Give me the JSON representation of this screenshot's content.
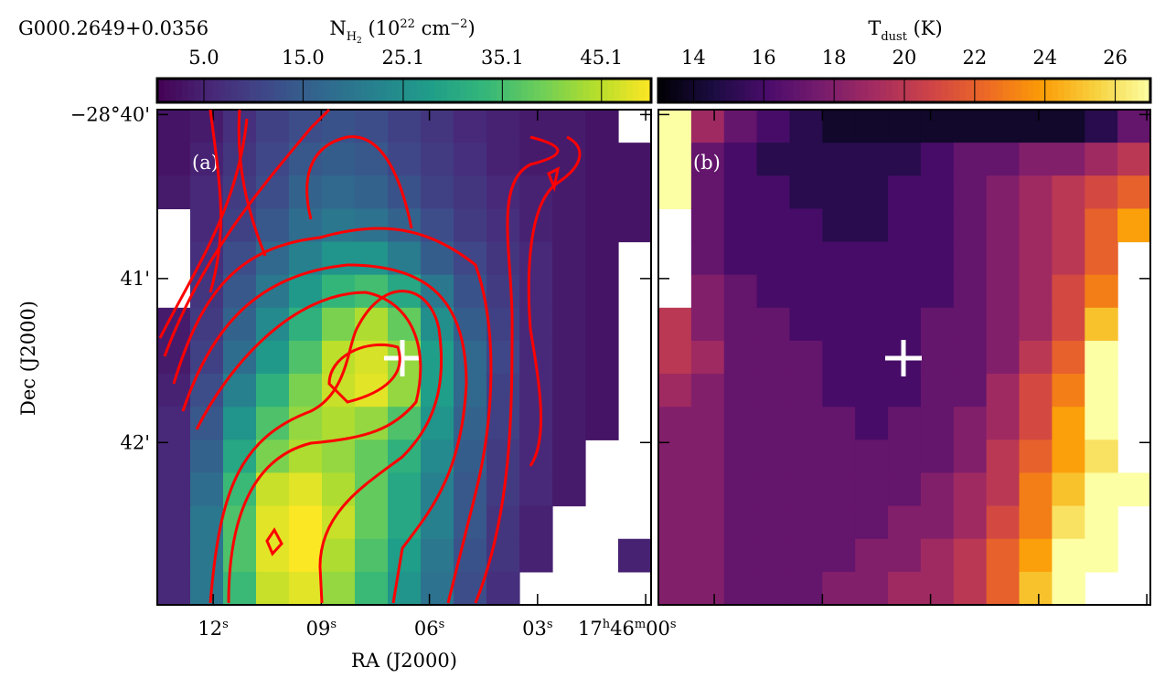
{
  "title": "G000.2649+0.0356",
  "chart_data": [
    {
      "type": "heatmap",
      "panel_label": "(a)",
      "colormap": "viridis",
      "colorbar_label": [
        "N",
        "H",
        "2",
        " (10",
        "22",
        " cm",
        "−2",
        ")"
      ],
      "clim": [
        0.3,
        50.1
      ],
      "cticks": [
        {
          "value": 5.0,
          "label": "5.0"
        },
        {
          "value": 15.0,
          "label": "15.0"
        },
        {
          "value": 25.1,
          "label": "25.1"
        },
        {
          "value": 35.1,
          "label": "35.1"
        },
        {
          "value": 45.1,
          "label": "45.1"
        }
      ],
      "xlabel": "RA (J2000)",
      "ylabel": "Dec (J2000)",
      "xlim": [
        13.55,
        -0.15
      ],
      "xticks": [
        {
          "value": 12,
          "label": [
            "12",
            "s"
          ]
        },
        {
          "value": 9,
          "label": [
            "09",
            "s"
          ]
        },
        {
          "value": 6,
          "label": [
            "06",
            "s"
          ]
        },
        {
          "value": 3,
          "label": [
            "03",
            "s"
          ]
        },
        {
          "value": 0,
          "label": [
            "17",
            "h",
            "46",
            "m",
            "00",
            "s"
          ]
        }
      ],
      "ylim": [
        39.97,
        42.99
      ],
      "yticks": [
        {
          "value": 40,
          "label": "−28°40'"
        },
        {
          "value": 41,
          "label": "41'"
        },
        {
          "value": 42,
          "label": "42'"
        }
      ],
      "contour_color": "#ff0000",
      "values": [
        [
          3,
          4,
          7,
          10,
          12,
          13,
          12,
          10,
          8,
          6,
          5,
          4,
          4,
          3,
          null
        ],
        [
          3,
          5,
          8,
          11,
          14,
          15,
          14,
          11,
          9,
          7,
          5,
          4,
          4,
          3,
          3
        ],
        [
          4,
          6,
          9,
          12,
          16,
          17,
          16,
          13,
          10,
          8,
          6,
          5,
          4,
          3,
          3
        ],
        [
          null,
          6,
          10,
          14,
          18,
          20,
          19,
          16,
          12,
          9,
          7,
          5,
          4,
          3,
          3
        ],
        [
          null,
          7,
          12,
          17,
          22,
          26,
          26,
          21,
          15,
          11,
          8,
          6,
          4,
          3,
          null
        ],
        [
          null,
          8,
          14,
          20,
          27,
          33,
          35,
          30,
          20,
          13,
          9,
          6,
          4,
          3,
          null
        ],
        [
          4,
          9,
          16,
          24,
          32,
          40,
          44,
          38,
          25,
          15,
          10,
          6,
          4,
          3,
          null
        ],
        [
          4,
          10,
          18,
          27,
          36,
          45,
          47,
          42,
          28,
          17,
          11,
          6,
          4,
          3,
          null
        ],
        [
          5,
          12,
          22,
          32,
          40,
          46,
          48,
          42,
          28,
          17,
          10,
          6,
          4,
          3,
          null
        ],
        [
          6,
          14,
          26,
          36,
          42,
          44,
          42,
          36,
          26,
          16,
          10,
          6,
          4,
          3,
          null
        ],
        [
          6,
          16,
          30,
          40,
          44,
          42,
          38,
          32,
          24,
          15,
          9,
          6,
          4,
          null,
          null
        ],
        [
          6,
          18,
          34,
          46,
          48,
          44,
          38,
          30,
          22,
          14,
          9,
          6,
          4,
          null,
          null
        ],
        [
          6,
          20,
          36,
          48,
          50,
          46,
          38,
          30,
          22,
          14,
          8,
          5,
          null,
          null,
          null
        ],
        [
          6,
          20,
          36,
          48,
          50,
          44,
          36,
          28,
          20,
          13,
          8,
          5,
          null,
          null,
          5
        ],
        [
          6,
          20,
          34,
          46,
          48,
          42,
          34,
          26,
          19,
          12,
          7,
          null,
          null,
          null,
          null
        ]
      ]
    },
    {
      "type": "heatmap",
      "panel_label": "(b)",
      "colormap": "inferno",
      "colorbar_label": [
        "T",
        "dust",
        " (K)"
      ],
      "clim": [
        13,
        27
      ],
      "cticks": [
        14,
        16,
        18,
        20,
        22,
        24,
        26
      ],
      "values": [
        [
          27,
          19,
          17,
          16,
          15,
          14,
          14,
          14,
          14,
          14,
          14,
          14,
          14,
          15,
          17
        ],
        [
          27,
          17,
          16,
          15,
          15,
          15,
          15,
          15,
          16,
          17,
          17,
          18,
          18,
          19,
          20
        ],
        [
          27,
          17,
          16,
          16,
          15,
          15,
          15,
          16,
          16,
          17,
          18,
          19,
          20,
          21,
          22
        ],
        [
          null,
          17,
          16,
          16,
          16,
          15,
          15,
          16,
          16,
          17,
          18,
          19,
          20,
          22,
          24
        ],
        [
          null,
          17,
          16,
          16,
          16,
          16,
          16,
          16,
          16,
          17,
          18,
          19,
          20,
          22,
          null
        ],
        [
          null,
          18,
          17,
          16,
          16,
          16,
          16,
          16,
          16,
          17,
          18,
          19,
          21,
          23,
          null
        ],
        [
          20,
          18,
          17,
          17,
          16,
          16,
          16,
          16,
          17,
          17,
          18,
          19,
          21,
          25,
          null
        ],
        [
          20,
          19,
          17,
          17,
          17,
          16,
          16,
          16,
          17,
          17,
          18,
          20,
          22,
          27,
          null
        ],
        [
          19,
          18,
          17,
          17,
          17,
          16,
          16,
          16,
          17,
          17,
          19,
          21,
          23,
          27,
          null
        ],
        [
          18,
          18,
          17,
          17,
          17,
          17,
          16,
          17,
          17,
          18,
          19,
          21,
          24,
          27,
          null
        ],
        [
          18,
          18,
          17,
          17,
          17,
          17,
          17,
          17,
          17,
          18,
          20,
          22,
          24,
          26,
          null
        ],
        [
          18,
          18,
          17,
          17,
          17,
          17,
          17,
          17,
          18,
          19,
          20,
          23,
          25,
          27,
          27
        ],
        [
          18,
          18,
          17,
          17,
          17,
          17,
          17,
          18,
          18,
          19,
          21,
          23,
          26,
          27,
          null
        ],
        [
          18,
          18,
          17,
          17,
          17,
          17,
          18,
          18,
          19,
          20,
          22,
          24,
          27,
          27,
          null
        ],
        [
          18,
          18,
          17,
          17,
          17,
          18,
          18,
          19,
          19,
          20,
          22,
          25,
          27,
          null,
          null
        ]
      ]
    }
  ]
}
